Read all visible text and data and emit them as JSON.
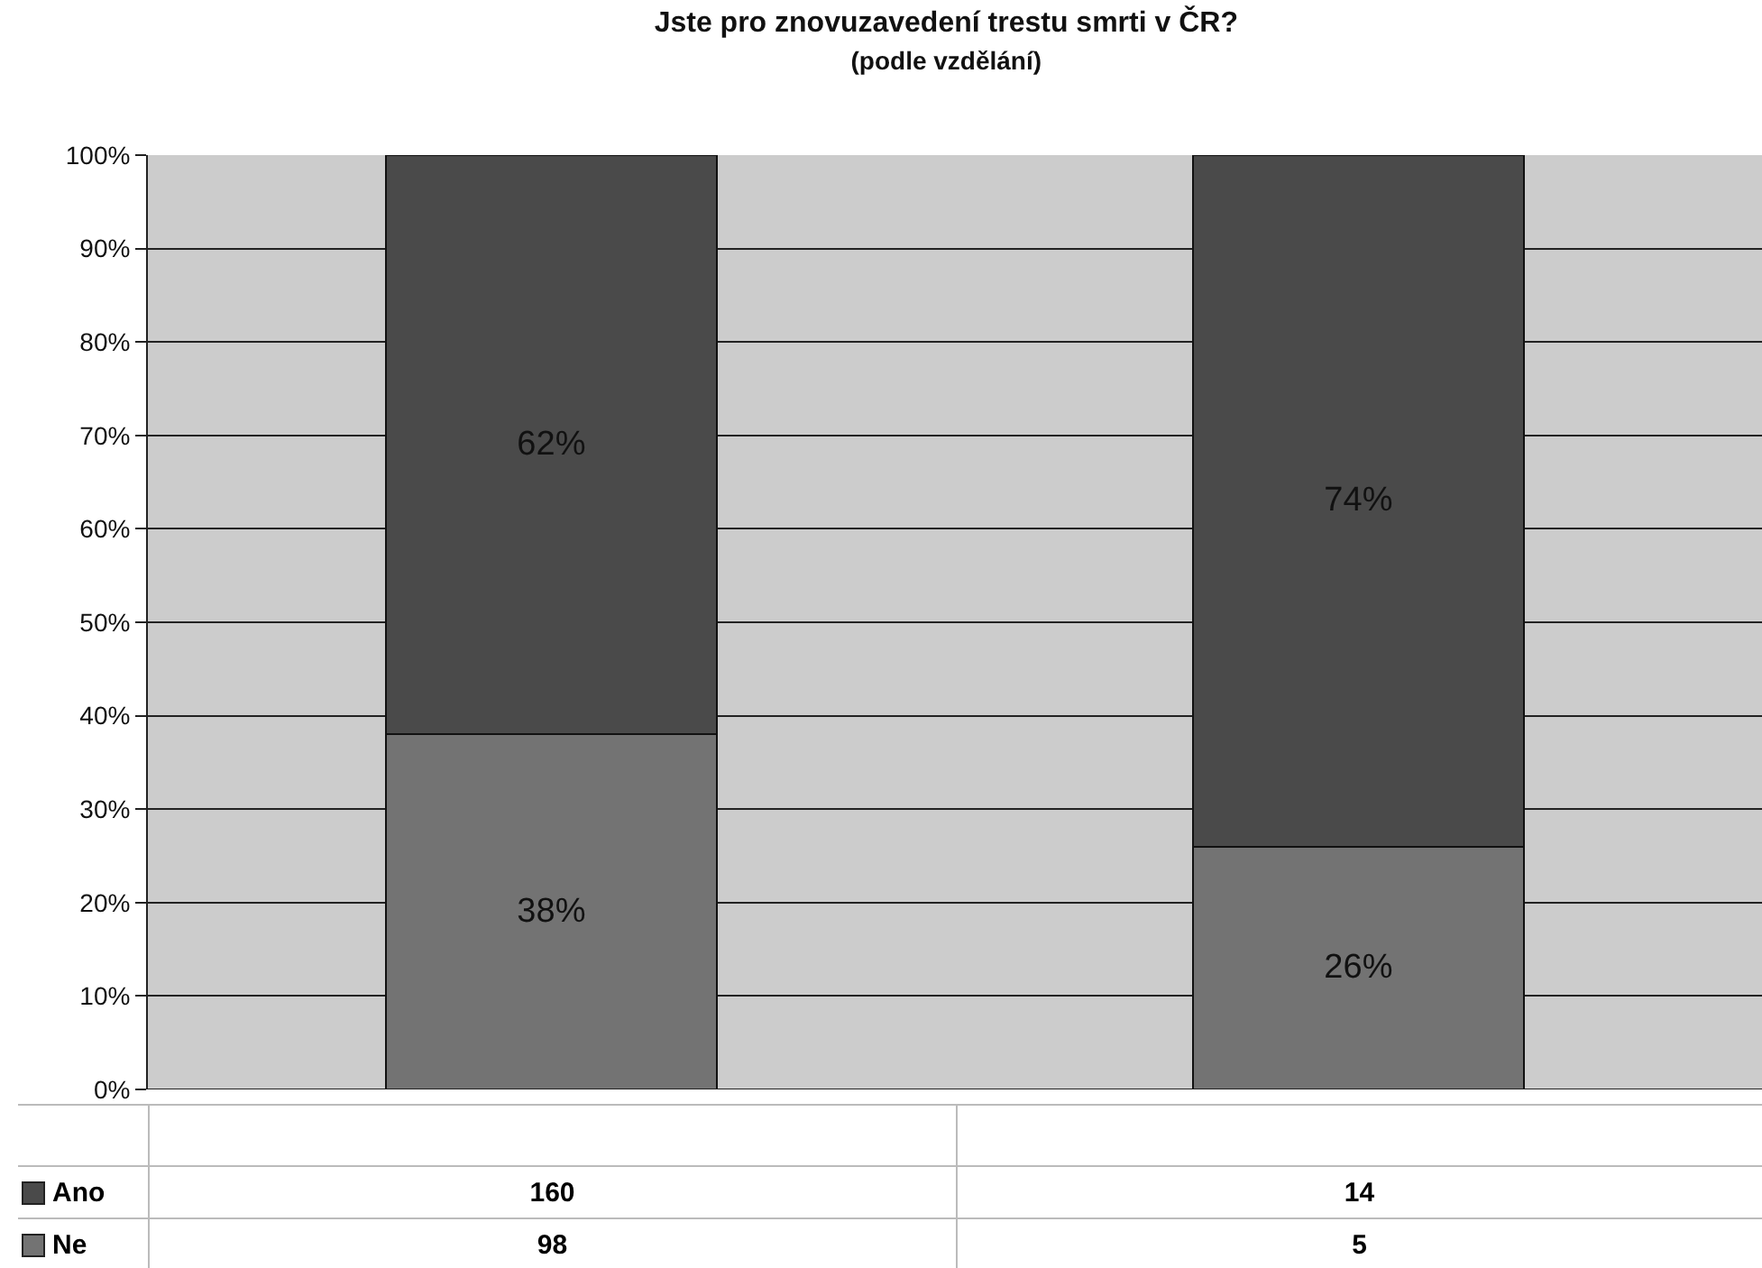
{
  "chart_data": {
    "type": "bar",
    "title": "Jste pro znovuzavedení trestu smrti v ČR?",
    "subtitle": "(podle vzdělání)",
    "categories": [
      null,
      null
    ],
    "stacked": true,
    "series": [
      {
        "name": "Ne",
        "color": "#737373",
        "values": [
          38,
          26
        ],
        "value_labels": [
          "38%",
          "26%"
        ]
      },
      {
        "name": "Ano",
        "color": "#4a4a4a",
        "values": [
          62,
          74
        ],
        "value_labels": [
          "62%",
          "74%"
        ]
      }
    ],
    "ylim": [
      0,
      100
    ],
    "yticks": [
      {
        "value": 0,
        "label": "0%"
      },
      {
        "value": 10,
        "label": "10%"
      },
      {
        "value": 20,
        "label": "20%"
      },
      {
        "value": 30,
        "label": "30%"
      },
      {
        "value": 40,
        "label": "40%"
      },
      {
        "value": 50,
        "label": "50%"
      },
      {
        "value": 60,
        "label": "60%"
      },
      {
        "value": 70,
        "label": "70%"
      },
      {
        "value": 80,
        "label": "80%"
      },
      {
        "value": 90,
        "label": "90%"
      },
      {
        "value": 100,
        "label": "100%"
      }
    ],
    "grid": "y",
    "legend": "bottom",
    "annotations": [
      "160",
      "14",
      "98",
      "5"
    ]
  }
}
